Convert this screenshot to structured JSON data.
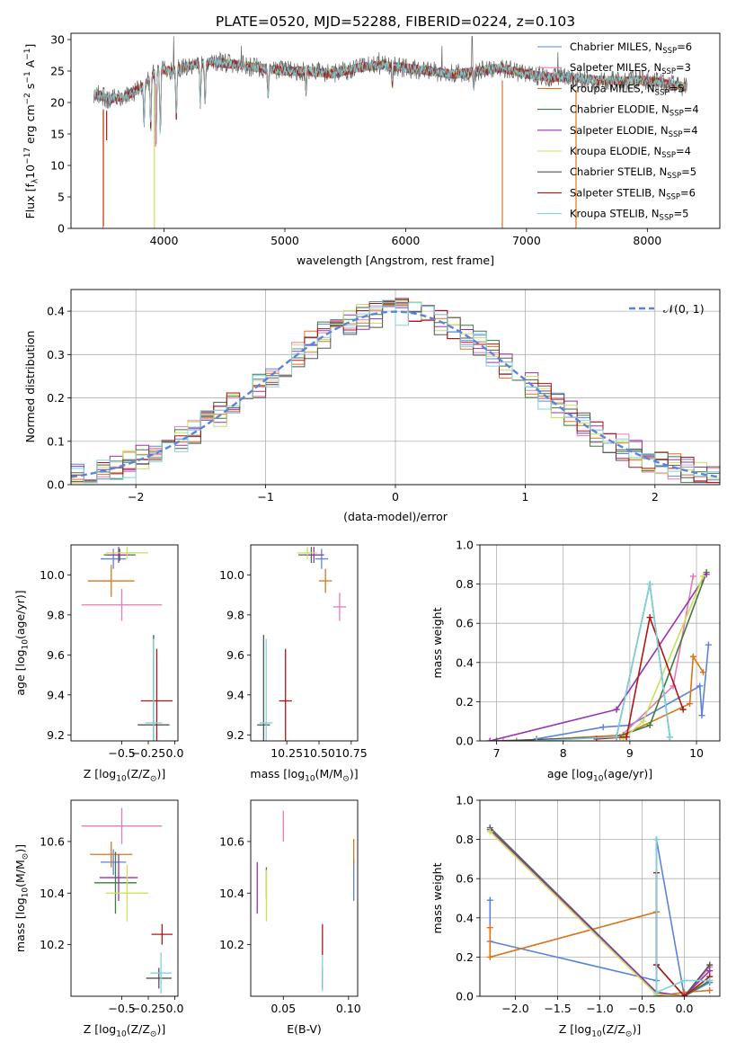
{
  "title": "PLATE=0520, MJD=52288, FIBERID=0224, z=0.103",
  "colors": {
    "chabrier_miles": "#5b84d8",
    "salpeter_miles": "#e87ab6",
    "kroupa_miles": "#d9761c",
    "chabrier_elodie": "#3f7a3f",
    "salpeter_elodie": "#9a30b0",
    "kroupa_elodie": "#c8e05a",
    "chabrier_stelib": "#555555",
    "salpeter_stelib": "#b01515",
    "kroupa_stelib": "#7fd3dc",
    "gaussian": "#5b84d8"
  },
  "chart_data": [
    {
      "type": "line",
      "name": "spectrum",
      "xlabel": "wavelength [Angstrom, rest frame]",
      "ylabel_parts": [
        "Flux [f",
        "λ",
        "10",
        "−17",
        " erg cm",
        "−2",
        " s",
        "−1",
        " A",
        "−1",
        "]"
      ],
      "xlim": [
        3230,
        8600
      ],
      "ylim": [
        0,
        31
      ],
      "xticks": [
        4000,
        5000,
        6000,
        7000,
        8000
      ],
      "yticks": [
        0,
        5,
        10,
        15,
        20,
        25,
        30
      ],
      "grid": false,
      "legend_position": "top-right",
      "legend": [
        {
          "key": "chabrier_miles",
          "base": "Chabrier MILES, N",
          "sub": "SSP",
          "tail": "=6"
        },
        {
          "key": "salpeter_miles",
          "base": "Salpeter MILES, N",
          "sub": "SSP",
          "tail": "=3"
        },
        {
          "key": "kroupa_miles",
          "base": "Kroupa MILES, N",
          "sub": "SSP",
          "tail": "=5"
        },
        {
          "key": "chabrier_elodie",
          "base": "Chabrier ELODIE, N",
          "sub": "SSP",
          "tail": "=4"
        },
        {
          "key": "salpeter_elodie",
          "base": "Salpeter ELODIE, N",
          "sub": "SSP",
          "tail": "=4"
        },
        {
          "key": "kroupa_elodie",
          "base": "Kroupa ELODIE, N",
          "sub": "SSP",
          "tail": "=4"
        },
        {
          "key": "chabrier_stelib",
          "base": "Chabrier STELIB, N",
          "sub": "SSP",
          "tail": "=5"
        },
        {
          "key": "salpeter_stelib",
          "base": "Salpeter STELIB, N",
          "sub": "SSP",
          "tail": "=6"
        },
        {
          "key": "kroupa_stelib",
          "base": "Kroupa STELIB, N",
          "sub": "SSP",
          "tail": "=5"
        }
      ],
      "continuum": [
        [
          3420,
          21.5
        ],
        [
          3550,
          20.5
        ],
        [
          3700,
          21
        ],
        [
          3850,
          23
        ],
        [
          3950,
          25.5
        ],
        [
          4050,
          25
        ],
        [
          4200,
          25.8
        ],
        [
          4400,
          26.5
        ],
        [
          4600,
          26
        ],
        [
          4800,
          25.5
        ],
        [
          5000,
          25
        ],
        [
          5200,
          25
        ],
        [
          5400,
          24.5
        ],
        [
          5600,
          25.5
        ],
        [
          5800,
          26
        ],
        [
          6000,
          25.5
        ],
        [
          6200,
          25
        ],
        [
          6400,
          24.5
        ],
        [
          6600,
          25
        ],
        [
          6800,
          25.5
        ],
        [
          7000,
          24.5
        ],
        [
          7200,
          24
        ],
        [
          7400,
          24
        ],
        [
          7600,
          23.5
        ],
        [
          7800,
          23.5
        ],
        [
          8000,
          23.5
        ],
        [
          8300,
          22.5
        ]
      ],
      "absorption": [
        [
          3835,
          6
        ],
        [
          3890,
          8
        ],
        [
          3934,
          12
        ],
        [
          3969,
          10
        ],
        [
          4102,
          8
        ],
        [
          4300,
          6
        ],
        [
          4340,
          7
        ],
        [
          4861,
          4
        ],
        [
          5175,
          3
        ],
        [
          5890,
          3
        ],
        [
          6563,
          2.5
        ]
      ],
      "spikes": [
        [
          4080,
          30.5
        ],
        [
          4640,
          29
        ],
        [
          5780,
          28
        ],
        [
          6300,
          29
        ],
        [
          6550,
          30.5
        ],
        [
          7260,
          28
        ]
      ],
      "drops": [
        {
          "key": "salpeter_miles",
          "w": 3495,
          "y": 0
        },
        {
          "key": "kroupa_miles",
          "w": 3500,
          "y": 0.3
        },
        {
          "key": "kroupa_elodie",
          "w": 3920,
          "y": 0
        },
        {
          "key": "salpeter_miles",
          "w": 3930,
          "y": 13
        },
        {
          "key": "kroupa_miles",
          "w": 6800,
          "y": 0
        },
        {
          "key": "kroupa_miles",
          "w": 7410,
          "y": 0
        },
        {
          "key": "salpeter_stelib",
          "w": 3525,
          "y": 14
        }
      ]
    },
    {
      "type": "step",
      "name": "residuals",
      "xlabel": "(data-model)/error",
      "ylabel": "Normed distribution",
      "xlim": [
        -2.5,
        2.5
      ],
      "ylim": [
        0,
        0.45
      ],
      "xticks": [
        -2,
        -1,
        0,
        1,
        2
      ],
      "yticks": [
        0.0,
        0.1,
        0.2,
        0.3,
        0.4
      ],
      "grid": true,
      "legend_position": "top-right",
      "legend_label": "𝒩(0, 1)",
      "bin_width": 0.1
    },
    {
      "type": "errorbar",
      "name": "age-vs-Z",
      "xlabel_parts": [
        "Z [log",
        "10",
        "(Z/Z",
        "⊙",
        ")]"
      ],
      "ylabel_parts": [
        "age  [log",
        "10",
        "(age/yr)]"
      ],
      "xlim": [
        -0.98,
        0.03
      ],
      "ylim": [
        9.17,
        10.15
      ],
      "xticks": [
        -0.5,
        -0.25,
        0.0
      ],
      "xticklabels": [
        "−0.5",
        "−0.25",
        "0.0"
      ],
      "yticks": [
        9.2,
        9.4,
        9.6,
        9.8,
        10.0
      ],
      "points": [
        {
          "key": "chabrier_miles",
          "x": -0.58,
          "y": 10.08,
          "xerr": 0.12,
          "yerr": 0.05
        },
        {
          "key": "salpeter_miles",
          "x": -0.5,
          "y": 9.85,
          "xerr": 0.38,
          "yerr": 0.08
        },
        {
          "key": "kroupa_miles",
          "x": -0.6,
          "y": 9.97,
          "xerr": 0.22,
          "yerr": 0.08
        },
        {
          "key": "chabrier_elodie",
          "x": -0.52,
          "y": 10.1,
          "xerr": 0.15,
          "yerr": 0.03
        },
        {
          "key": "salpeter_elodie",
          "x": -0.53,
          "y": 10.1,
          "xerr": 0.1,
          "yerr": 0.04
        },
        {
          "key": "kroupa_elodie",
          "x": -0.45,
          "y": 10.11,
          "xerr": 0.2,
          "yerr": 0.03
        },
        {
          "key": "chabrier_stelib",
          "x": -0.2,
          "y": 9.25,
          "xerr": 0.15,
          "yerr": 0.45
        },
        {
          "key": "salpeter_stelib",
          "x": -0.17,
          "y": 9.37,
          "xerr": 0.15,
          "yerr": 0.26
        },
        {
          "key": "kroupa_stelib",
          "x": -0.2,
          "y": 9.26,
          "xerr": 0.08,
          "yerr": 0.42
        }
      ]
    },
    {
      "type": "errorbar",
      "name": "age-vs-mass",
      "xlabel_parts": [
        "mass [log",
        "10",
        "(M/M",
        "⊙",
        ")]"
      ],
      "xlim": [
        9.97,
        10.8
      ],
      "ylim": [
        9.17,
        10.15
      ],
      "xticks": [
        10.25,
        10.5,
        10.75
      ],
      "xticklabels": [
        "10.25",
        "10.50",
        "10.75"
      ],
      "yticks": [
        9.2,
        9.4,
        9.6,
        9.8,
        10.0
      ],
      "points": [
        {
          "key": "chabrier_miles",
          "x": 10.52,
          "y": 10.08,
          "xerr": 0.05,
          "yerr": 0.05
        },
        {
          "key": "salpeter_miles",
          "x": 10.66,
          "y": 9.84,
          "xerr": 0.05,
          "yerr": 0.07
        },
        {
          "key": "kroupa_miles",
          "x": 10.55,
          "y": 9.97,
          "xerr": 0.05,
          "yerr": 0.06
        },
        {
          "key": "chabrier_elodie",
          "x": 10.44,
          "y": 10.1,
          "xerr": 0.1,
          "yerr": 0.04
        },
        {
          "key": "salpeter_elodie",
          "x": 10.46,
          "y": 10.1,
          "xerr": 0.07,
          "yerr": 0.04
        },
        {
          "key": "kroupa_elodie",
          "x": 10.41,
          "y": 10.11,
          "xerr": 0.08,
          "yerr": 0.03
        },
        {
          "key": "chabrier_stelib",
          "x": 10.07,
          "y": 9.25,
          "xerr": 0.05,
          "yerr": 0.45
        },
        {
          "key": "salpeter_stelib",
          "x": 10.24,
          "y": 9.37,
          "xerr": 0.05,
          "yerr": 0.26
        },
        {
          "key": "kroupa_stelib",
          "x": 10.09,
          "y": 9.26,
          "xerr": 0.05,
          "yerr": 0.42
        }
      ]
    },
    {
      "type": "line",
      "name": "mass-weight-vs-age",
      "xlabel_parts": [
        "age  [log",
        "10",
        "(age/yr)]"
      ],
      "ylabel": "mass weight",
      "xlim": [
        6.75,
        10.35
      ],
      "ylim": [
        0,
        1
      ],
      "xticks": [
        7,
        8,
        9,
        10
      ],
      "yticks": [
        0.0,
        0.2,
        0.4,
        0.6,
        0.8,
        1.0
      ],
      "grid": true,
      "series": [
        {
          "key": "chabrier_miles",
          "x": [
            7.6,
            8.6,
            9.0,
            10.05,
            10.08,
            10.18
          ],
          "y": [
            0.01,
            0.07,
            0.08,
            0.28,
            0.13,
            0.49
          ]
        },
        {
          "key": "salpeter_miles",
          "x": [
            7.1,
            8.85,
            9.65,
            9.95
          ],
          "y": [
            0.0,
            0.02,
            0.28,
            0.84
          ]
        },
        {
          "key": "kroupa_miles",
          "x": [
            7.3,
            8.9,
            9.9,
            9.95,
            10.1
          ],
          "y": [
            0.0,
            0.03,
            0.19,
            0.43,
            0.35
          ]
        },
        {
          "key": "chabrier_elodie",
          "x": [
            8.8,
            9.3,
            10.15
          ],
          "y": [
            0.02,
            0.08,
            0.86
          ]
        },
        {
          "key": "salpeter_elodie",
          "x": [
            6.9,
            8.8,
            10.15
          ],
          "y": [
            0.0,
            0.16,
            0.85
          ]
        },
        {
          "key": "kroupa_elodie",
          "x": [
            8.9,
            9.2,
            10.1
          ],
          "y": [
            0.01,
            0.1,
            0.84
          ]
        },
        {
          "key": "chabrier_stelib",
          "x": [
            7.0,
            8.8,
            9.3,
            9.6
          ],
          "y": [
            0.0,
            0.02,
            0.8,
            0.02
          ]
        },
        {
          "key": "salpeter_stelib",
          "x": [
            8.5,
            8.95,
            9.3,
            9.8
          ],
          "y": [
            0.01,
            0.02,
            0.63,
            0.16
          ]
        },
        {
          "key": "kroupa_stelib",
          "x": [
            7.6,
            8.8,
            9.3,
            9.6
          ],
          "y": [
            0.0,
            0.02,
            0.8,
            0.02
          ]
        }
      ]
    },
    {
      "type": "errorbar",
      "name": "mass-vs-Z",
      "xlabel_parts": [
        "Z [log",
        "10",
        "(Z/Z",
        "⊙",
        ")]"
      ],
      "ylabel_parts": [
        "mass [log",
        "10",
        "(M/M",
        "⊙",
        ")]"
      ],
      "xlim": [
        -0.98,
        0.03
      ],
      "ylim": [
        10.0,
        10.76
      ],
      "xticks": [
        -0.5,
        -0.25,
        0.0
      ],
      "xticklabels": [
        "−0.5",
        "−0.25",
        "0.0"
      ],
      "yticks": [
        10.2,
        10.4,
        10.6
      ],
      "points": [
        {
          "key": "chabrier_miles",
          "x": -0.58,
          "y": 10.52,
          "xerr": 0.12,
          "yerr": 0.05
        },
        {
          "key": "salpeter_miles",
          "x": -0.5,
          "y": 10.66,
          "xerr": 0.38,
          "yerr": 0.07
        },
        {
          "key": "kroupa_miles",
          "x": -0.6,
          "y": 10.55,
          "xerr": 0.2,
          "yerr": 0.05
        },
        {
          "key": "chabrier_elodie",
          "x": -0.56,
          "y": 10.44,
          "xerr": 0.2,
          "yerr": 0.12
        },
        {
          "key": "salpeter_elodie",
          "x": -0.53,
          "y": 10.46,
          "xerr": 0.18,
          "yerr": 0.09
        },
        {
          "key": "kroupa_elodie",
          "x": -0.45,
          "y": 10.4,
          "xerr": 0.2,
          "yerr": 0.11
        },
        {
          "key": "chabrier_stelib",
          "x": -0.15,
          "y": 10.07,
          "xerr": 0.12,
          "yerr": 0.04
        },
        {
          "key": "salpeter_stelib",
          "x": -0.12,
          "y": 10.24,
          "xerr": 0.1,
          "yerr": 0.04
        },
        {
          "key": "kroupa_stelib",
          "x": -0.13,
          "y": 10.09,
          "xerr": 0.1,
          "yerr": 0.08
        }
      ]
    },
    {
      "type": "errorbar",
      "name": "mass-vs-ebv",
      "xlabel": "E(B-V)",
      "xlim": [
        0.025,
        0.107
      ],
      "ylim": [
        10.0,
        10.76
      ],
      "xticks": [
        0.05,
        0.1
      ],
      "xticklabels": [
        "0.05",
        "0.10"
      ],
      "yticks": [
        10.2,
        10.4,
        10.6
      ],
      "points": [
        {
          "key": "chabrier_miles",
          "x": 0.104,
          "y": 10.45,
          "xerr": 0,
          "yerr": 0.08
        },
        {
          "key": "salpeter_miles",
          "x": 0.05,
          "y": 10.66,
          "xerr": 0,
          "yerr": 0.06
        },
        {
          "key": "kroupa_miles",
          "x": 0.104,
          "y": 10.56,
          "xerr": 0,
          "yerr": 0.05
        },
        {
          "key": "chabrier_elodie",
          "x": 0.037,
          "y": 10.44,
          "xerr": 0,
          "yerr": 0.06
        },
        {
          "key": "salpeter_elodie",
          "x": 0.03,
          "y": 10.42,
          "xerr": 0,
          "yerr": 0.1
        },
        {
          "key": "kroupa_elodie",
          "x": 0.037,
          "y": 10.39,
          "xerr": 0,
          "yerr": 0.1
        },
        {
          "key": "chabrier_stelib",
          "x": 0.08,
          "y": 10.07,
          "xerr": 0,
          "yerr": 0.04
        },
        {
          "key": "salpeter_stelib",
          "x": 0.08,
          "y": 10.22,
          "xerr": 0,
          "yerr": 0.06
        },
        {
          "key": "kroupa_stelib",
          "x": 0.08,
          "y": 10.09,
          "xerr": 0,
          "yerr": 0.07
        }
      ]
    },
    {
      "type": "line",
      "name": "mass-weight-vs-Z",
      "xlabel_parts": [
        "Z [log",
        "10",
        "(Z/Z",
        "⊙",
        ")]"
      ],
      "ylabel": "mass weight",
      "xlim": [
        -2.42,
        0.42
      ],
      "ylim": [
        0,
        1
      ],
      "xticks": [
        -2.0,
        -1.5,
        -1.0,
        -0.5,
        0.0
      ],
      "xticklabels": [
        "−2.0",
        "−1.5",
        "−1.0",
        "−0.5",
        "0.0"
      ],
      "yticks": [
        0.0,
        0.2,
        0.4,
        0.6,
        0.8,
        1.0
      ],
      "grid": true,
      "series": [
        {
          "key": "chabrier_miles",
          "x": [
            -2.3,
            -2.3,
            -0.33,
            -0.33,
            0.0,
            0.3
          ],
          "y": [
            0.49,
            0.28,
            0.08,
            0.8,
            0.0,
            0.07
          ]
        },
        {
          "key": "salpeter_miles",
          "x": [
            -0.33,
            0.0,
            0.3
          ],
          "y": [
            0.02,
            0.0,
            0.15
          ]
        },
        {
          "key": "kroupa_miles",
          "x": [
            -2.3,
            -2.3,
            -0.33,
            -0.33,
            0.0,
            0.3
          ],
          "y": [
            0.35,
            0.2,
            0.43,
            0.0,
            0.02,
            0.03
          ]
        },
        {
          "key": "chabrier_elodie",
          "x": [
            -2.3,
            -0.33,
            0.0,
            0.3
          ],
          "y": [
            0.86,
            0.02,
            0.0,
            0.08
          ]
        },
        {
          "key": "salpeter_elodie",
          "x": [
            -2.3,
            -0.33,
            0.0,
            0.3
          ],
          "y": [
            0.85,
            0.02,
            0.0,
            0.13
          ]
        },
        {
          "key": "kroupa_elodie",
          "x": [
            -2.3,
            -0.33,
            0.0,
            0.3
          ],
          "y": [
            0.84,
            0.01,
            0.0,
            0.1
          ]
        },
        {
          "key": "chabrier_stelib",
          "x": [
            -0.33,
            0.0,
            0.3
          ],
          "y": [
            0.16,
            0.0,
            0.16
          ]
        },
        {
          "key": "salpeter_stelib",
          "x": [
            -0.33,
            -0.33,
            0.0,
            0.3
          ],
          "y": [
            0.63,
            0.16,
            0.0,
            0.1
          ]
        },
        {
          "key": "kroupa_stelib",
          "x": [
            -0.33,
            -0.33,
            0.0,
            0.3
          ],
          "y": [
            0.8,
            0.02,
            0.08,
            0.08
          ]
        }
      ]
    }
  ]
}
